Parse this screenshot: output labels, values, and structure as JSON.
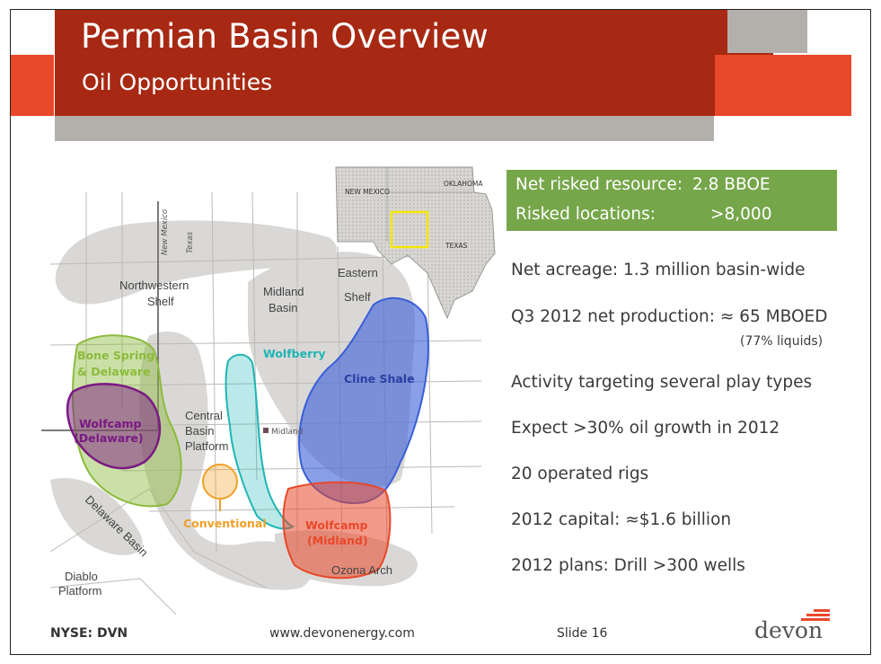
{
  "header": {
    "title": "Permian Basin Overview",
    "subtitle": "Oil Opportunities"
  },
  "summary": {
    "resource_label": "Net risked resource:",
    "resource_value": "2.8 BBOE",
    "locations_label": "Risked locations:",
    "locations_value": ">8,000"
  },
  "stats": [
    "Net acreage: 1.3 million basin-wide",
    "Q3 2012 net production: ≈ 65 MBOED",
    "Activity targeting several play types",
    "Expect >30% oil growth in 2012",
    "20 operated rigs",
    "2012 capital: ≈$1.6 billion",
    "2012 plans: Drill >300 wells"
  ],
  "production_note": "(77% liquids)",
  "map": {
    "labels": {
      "nw_shelf_1": "Northwestern",
      "nw_shelf_2": "Shelf",
      "midland_basin_1": "Midland",
      "midland_basin_2": "Basin",
      "eastern_shelf_1": "Eastern",
      "eastern_shelf_2": "Shelf",
      "central_1": "Central",
      "central_2": "Basin",
      "central_3": "Platform",
      "delaware_basin": "Delaware Basin",
      "diablo_1": "Diablo",
      "diablo_2": "Platform",
      "ozona": "Ozona Arch",
      "midland_city": "Midland",
      "nm": "New Mexico",
      "tx": "Texas"
    },
    "plays": {
      "bone_spring_1": "Bone Spring",
      "bone_spring_2": "& Delaware",
      "wolfcamp_del_1": "Wolfcamp",
      "wolfcamp_del_2": "(Delaware)",
      "wolfberry": "Wolfberry",
      "cline": "Cline Shale",
      "conventional": "Conventional",
      "wolfcamp_mid_1": "Wolfcamp",
      "wolfcamp_mid_2": "(Midland)"
    },
    "inset": {
      "new_mexico": "NEW MEXICO",
      "oklahoma": "OKLAHOMA",
      "texas": "TEXAS"
    },
    "colors": {
      "bone_spring": "#8cbb3c",
      "wolfcamp_delaware": "#7a1a82",
      "wolfberry": "#1fb5b5",
      "cline": "#3a5fd8",
      "conventional": "#f0a028",
      "wolfcamp_midland": "#e9482a"
    }
  },
  "footer": {
    "ticker": "NYSE: DVN",
    "url": "www.devonenergy.com",
    "slide": "Slide 16",
    "logo": "devon"
  },
  "theme": {
    "red": "#a72913",
    "orange": "#e9482a",
    "gray": "#b3b0ab",
    "green": "#76a64a"
  }
}
